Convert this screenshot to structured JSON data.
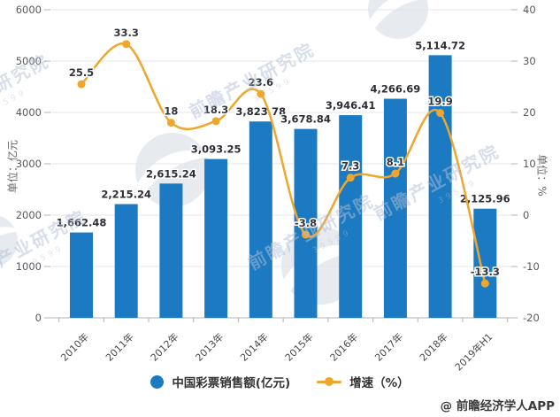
{
  "attribution": "@ 前瞻经济学人APP",
  "watermark": {
    "text": "前瞻产业研究院",
    "digits": "39599"
  },
  "legend": {
    "items": [
      {
        "label": "中国彩票销售额(亿元)",
        "type": "bar",
        "color": "#1b7ac1"
      },
      {
        "label": "增速（%）",
        "type": "line",
        "color": "#efa62d"
      }
    ]
  },
  "chart_data": {
    "type": "bar+line combo",
    "categories": [
      "2010年",
      "2011年",
      "2012年",
      "2013年",
      "2014年",
      "2015年",
      "2016年",
      "2017年",
      "2018年",
      "2019年H1"
    ],
    "series": [
      {
        "name": "中国彩票销售额(亿元)",
        "type": "bar",
        "axis": "left",
        "color": "#1b7ac1",
        "values": [
          1662.48,
          2215.24,
          2615.24,
          3093.25,
          3823.78,
          3678.84,
          3946.41,
          4266.69,
          5114.72,
          2125.96
        ],
        "labels": [
          "1,662.48",
          "2,215.24",
          "2,615.24",
          "3,093.25",
          "3,823.78",
          "3,678.84",
          "3,946.41",
          "4,266.69",
          "5,114.72",
          "2,125.96"
        ]
      },
      {
        "name": "增速（%）",
        "type": "line",
        "axis": "right",
        "color": "#efa62d",
        "values": [
          25.5,
          33.3,
          18,
          18.3,
          23.6,
          -3.8,
          7.3,
          8.1,
          19.9,
          -13.3
        ],
        "labels": [
          "25.5",
          "33.3",
          "18",
          "18.3",
          "23.6",
          "-3.8",
          "7.3",
          "8.1",
          "19.9",
          "-13.3"
        ]
      }
    ],
    "left_axis": {
      "name": "单位：亿元",
      "min": 0,
      "max": 6000,
      "step": 1000,
      "ticks": [
        "0",
        "1000",
        "2000",
        "3000",
        "4000",
        "5000",
        "6000"
      ]
    },
    "right_axis": {
      "name": "单位：%",
      "min": -20,
      "max": 40,
      "step": 10,
      "ticks": [
        "-20",
        "-10",
        "0",
        "10",
        "20",
        "30",
        "40"
      ]
    },
    "grid": true,
    "legend_position": "bottom",
    "colors": {
      "grid_line": "#e4e4e4",
      "axis_line": "#b3b3b3",
      "tick_label": "#595959",
      "category_label": "#4a4a4a",
      "bar_value_label": "#2d2d35",
      "line_value_label": "#33343e",
      "watermark_text": "#b2bed6",
      "watermark_logo": "#ccd3de"
    }
  }
}
